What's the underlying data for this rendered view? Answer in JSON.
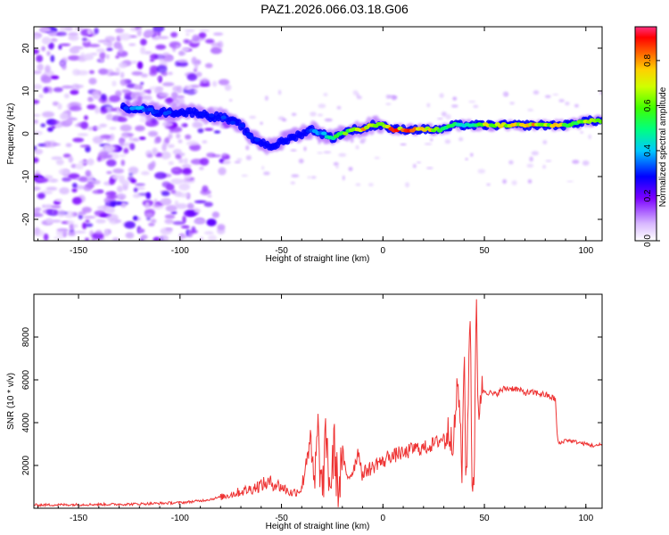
{
  "title": "PAZ1.2026.066.03.18.G06",
  "chart_data": [
    {
      "type": "heatmap",
      "name": "spectrogram",
      "xlabel": "Height of straight line (km)",
      "ylabel": "Frequency (Hz)",
      "xlim": [
        -172,
        108
      ],
      "ylim": [
        -25,
        25
      ],
      "xticks": [
        -150,
        -100,
        -50,
        0,
        50,
        100
      ],
      "yticks": [
        -20,
        -10,
        0,
        10,
        20
      ],
      "xtick_labels": [
        "-150",
        "-100",
        "-50",
        "0",
        "50",
        "100"
      ],
      "ytick_labels": [
        "-20",
        "-10",
        "0",
        "10",
        "20"
      ],
      "ridge": {
        "x": [
          -128,
          -120,
          -110,
          -100,
          -92,
          -85,
          -80,
          -75,
          -70,
          -65,
          -60,
          -55,
          -50,
          -45,
          -40,
          -35,
          -30,
          -25,
          -20,
          -15,
          -10,
          -5,
          0,
          5,
          10,
          20,
          30,
          35,
          40,
          45,
          50,
          60,
          70,
          80,
          90,
          100,
          108
        ],
        "y": [
          6,
          6,
          5,
          5,
          5,
          4,
          4,
          3,
          2,
          -1,
          -2,
          -3,
          -2,
          -1,
          0,
          1,
          0,
          -1,
          0,
          1,
          1,
          2,
          2,
          1,
          1,
          1,
          1,
          2,
          2,
          2,
          2,
          2,
          2,
          2,
          2,
          3,
          3
        ],
        "amplitude": [
          0.35,
          0.4,
          0.35,
          0.3,
          0.3,
          0.3,
          0.35,
          0.3,
          0.35,
          0.35,
          0.3,
          0.25,
          0.25,
          0.25,
          0.3,
          0.35,
          0.5,
          0.6,
          0.65,
          0.75,
          0.85,
          0.7,
          0.8,
          0.9,
          0.95,
          0.85,
          0.7,
          0.55,
          0.5,
          0.6,
          0.75,
          0.8,
          0.85,
          0.8,
          0.75,
          0.7,
          0.7
        ]
      },
      "colorbar": {
        "label": "Normalized spectral amplitude",
        "range": [
          0,
          0.95
        ],
        "ticks": [
          0.0,
          0.2,
          0.4,
          0.6,
          0.8
        ],
        "tick_labels": [
          "0.0",
          "0.2",
          "0.4",
          "0.6",
          "0.8"
        ]
      }
    },
    {
      "type": "line",
      "name": "snr",
      "xlabel": "Height of straight line (km)",
      "ylabel": "SNR (10 * v/v)",
      "xlim": [
        -172,
        108
      ],
      "ylim": [
        0,
        10000
      ],
      "xticks": [
        -150,
        -100,
        -50,
        0,
        50,
        100
      ],
      "yticks": [
        2000,
        4000,
        6000,
        8000
      ],
      "xtick_labels": [
        "-150",
        "-100",
        "-50",
        "0",
        "50",
        "100"
      ],
      "ytick_labels": [
        "2000",
        "4000",
        "6000",
        "8000"
      ],
      "color": "#ee3333",
      "series": [
        {
          "name": "SNR",
          "x": [
            -172,
            -150,
            -125,
            -110,
            -100,
            -95,
            -90,
            -85,
            -80,
            -75,
            -70,
            -65,
            -60,
            -55,
            -50,
            -45,
            -40,
            -36,
            -34,
            -32,
            -30,
            -28,
            -26,
            -24,
            -22,
            -20,
            -18,
            -15,
            -12,
            -10,
            -8,
            -5,
            -2,
            0,
            3,
            5,
            8,
            10,
            15,
            20,
            25,
            30,
            33,
            35,
            37,
            39,
            40,
            41,
            42,
            43,
            44,
            45,
            46,
            47,
            48,
            50,
            55,
            60,
            65,
            70,
            75,
            80,
            85,
            86,
            87,
            90,
            95,
            100,
            105,
            108
          ],
          "y": [
            150,
            170,
            190,
            230,
            260,
            300,
            350,
            420,
            520,
            640,
            780,
            900,
            1100,
            1200,
            1000,
            700,
            900,
            3400,
            800,
            3500,
            600,
            3300,
            900,
            2900,
            700,
            2700,
            1400,
            1700,
            2700,
            1500,
            1800,
            1900,
            2200,
            2100,
            2500,
            2400,
            2600,
            2500,
            2800,
            2800,
            3000,
            3300,
            3600,
            3200,
            6200,
            1400,
            8000,
            600,
            5100,
            9600,
            500,
            1900,
            9400,
            4400,
            5400,
            5500,
            5300,
            5600,
            5600,
            5400,
            5400,
            5300,
            5100,
            3200,
            3000,
            3200,
            3100,
            3000,
            2900,
            3000
          ]
        }
      ]
    }
  ]
}
